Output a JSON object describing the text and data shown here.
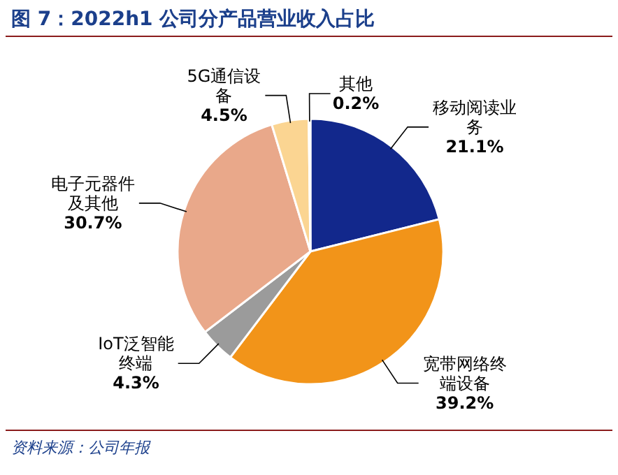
{
  "chart_data": {
    "type": "pie",
    "title": "图 7：2022h1 公司分产品营业收入占比",
    "categories": [
      "移动阅读业务",
      "宽带网络终端设备",
      "IoT泛智能终端",
      "电子元器件及其他",
      "5G通信设备",
      "其他"
    ],
    "values": [
      21.1,
      39.2,
      4.3,
      30.7,
      4.5,
      0.2
    ],
    "colors": [
      "#12288c",
      "#f29419",
      "#9b9b9b",
      "#e9a88a",
      "#fbd592",
      "#f4eee6"
    ],
    "value_labels": [
      "21.1%",
      "39.2%",
      "4.3%",
      "30.7%",
      "4.5%",
      "0.2%"
    ],
    "legend": false,
    "annotations": [
      "资料来源：公司年报"
    ]
  }
}
